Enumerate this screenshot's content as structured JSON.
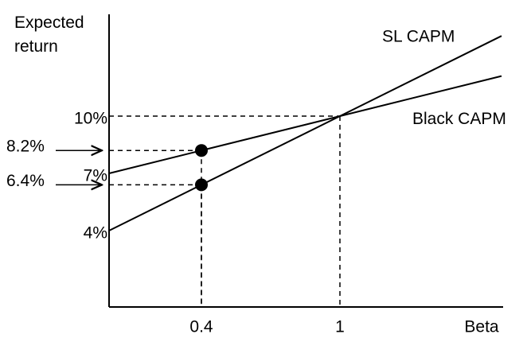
{
  "chart_data": {
    "type": "line",
    "y_label": "Expected return",
    "x_label": "Beta",
    "x": [
      0,
      0.4,
      1,
      1.7
    ],
    "series": [
      {
        "name": "SL CAPM",
        "color": "#000000",
        "values": [
          4,
          6.4,
          10,
          14.2
        ]
      },
      {
        "name": "Black CAPM",
        "color": "#000000",
        "values": [
          7,
          8.2,
          10,
          12.1
        ]
      }
    ],
    "marked_points": [
      {
        "x": 0.4,
        "y": 8.2,
        "label": "8.2%"
      },
      {
        "x": 0.4,
        "y": 6.4,
        "label": "6.4%"
      }
    ],
    "xlim": [
      0,
      1.7
    ],
    "ylim": [
      0,
      15
    ],
    "xticks": [
      0.4,
      1
    ],
    "yticks": [
      {
        "value": 10,
        "label": "10%"
      },
      {
        "value": 7,
        "label": "7%"
      },
      {
        "value": 4,
        "label": "4%"
      }
    ]
  }
}
